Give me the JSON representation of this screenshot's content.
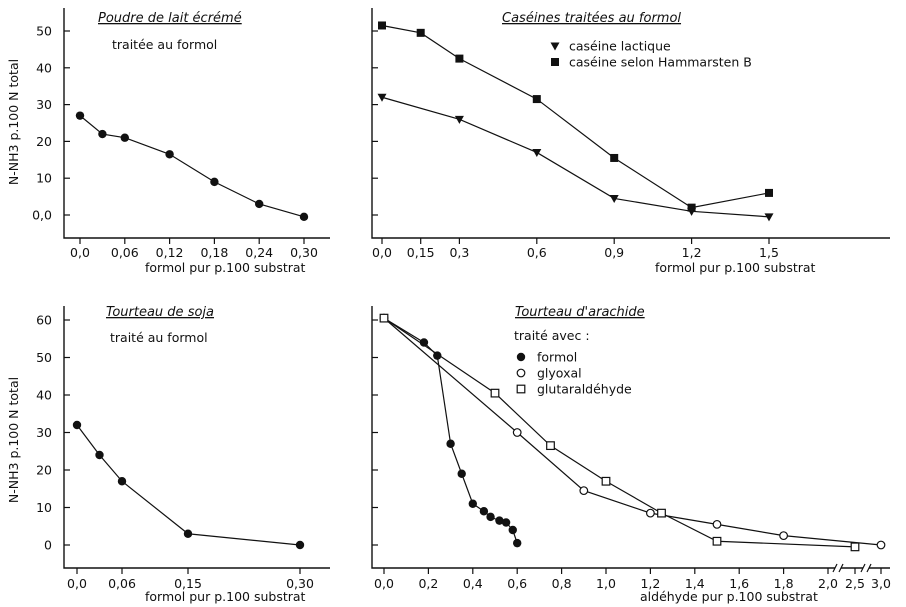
{
  "chart_data": [
    {
      "id": "p1",
      "type": "line",
      "title": "Poudre de lait écrémé",
      "subtitle": "traitée au formol",
      "xlabel": "formol pur p.100 substrat",
      "ylabel": "N-NH3 p.100 N total",
      "x_ticks": [
        "0,0",
        "0,06",
        "0,12",
        "0,18",
        "0,24",
        "0,30"
      ],
      "y_ticks": [
        "0,0",
        "10",
        "20",
        "30",
        "40",
        "50"
      ],
      "ylim": [
        0,
        50
      ],
      "series": [
        {
          "marker": "filled-circle",
          "x": [
            0.0,
            0.03,
            0.06,
            0.12,
            0.18,
            0.24,
            0.3
          ],
          "y": [
            27,
            22,
            21,
            16.5,
            9,
            3,
            -0.5
          ]
        }
      ]
    },
    {
      "id": "p2",
      "type": "line",
      "title": "Caséines traitées au formol",
      "xlabel": "formol pur p.100 substrat",
      "x_ticks": [
        "0,0",
        "0,15",
        "0,3",
        "0,6",
        "0,9",
        "1,2",
        "1,5"
      ],
      "ylim": [
        0,
        50
      ],
      "series": [
        {
          "name": "caséine lactique",
          "marker": "filled-triangle-down",
          "x": [
            0.0,
            0.3,
            0.6,
            0.9,
            1.2,
            1.5
          ],
          "y": [
            32,
            26,
            17,
            4.5,
            1,
            -0.5
          ]
        },
        {
          "name": "caséine selon Hammarsten B",
          "marker": "filled-square",
          "x": [
            0.0,
            0.15,
            0.3,
            0.6,
            0.9,
            1.2,
            1.5
          ],
          "y": [
            51.5,
            49.5,
            42.5,
            31.5,
            15.5,
            2,
            6
          ]
        }
      ]
    },
    {
      "id": "p3",
      "type": "line",
      "title": "Tourteau de soja",
      "subtitle": "traité au formol",
      "xlabel": "formol pur p.100 substrat",
      "ylabel": "N-NH3 p.100 N total",
      "x_ticks": [
        "0,0",
        "0,06",
        "0,15",
        "0,30"
      ],
      "y_ticks": [
        "0",
        "10",
        "20",
        "30",
        "40",
        "50",
        "60"
      ],
      "ylim": [
        0,
        60
      ],
      "series": [
        {
          "marker": "filled-circle",
          "x": [
            0.0,
            0.03,
            0.06,
            0.15,
            0.3
          ],
          "y": [
            32,
            24,
            17,
            3,
            0
          ]
        }
      ]
    },
    {
      "id": "p4",
      "type": "line",
      "title": "Tourteau d'arachide",
      "legend_title": "traité avec :",
      "xlabel": "aldéhyde pur p.100 substrat",
      "x_ticks": [
        "0,0",
        "0,2",
        "0,4",
        "0,6",
        "0,8",
        "1,0",
        "1,2",
        "1,4",
        "1,6",
        "1,8",
        "2,0",
        "2,5",
        "3,0"
      ],
      "ylim": [
        0,
        60
      ],
      "series": [
        {
          "name": "formol",
          "marker": "filled-circle",
          "x": [
            0.0,
            0.18,
            0.24,
            0.3,
            0.35,
            0.4,
            0.45,
            0.48,
            0.52,
            0.55,
            0.58,
            0.6
          ],
          "y": [
            60.5,
            54,
            50.5,
            27,
            19,
            11,
            9,
            7.5,
            6.5,
            6,
            4,
            0.5
          ]
        },
        {
          "name": "glyoxal",
          "marker": "open-circle",
          "x": [
            0.0,
            0.6,
            0.9,
            1.2,
            1.5,
            1.8,
            3.0
          ],
          "y": [
            60.5,
            30,
            14.5,
            8.5,
            5.5,
            2.5,
            0
          ]
        },
        {
          "name": "glutaraldéhyde",
          "marker": "open-square",
          "x": [
            0.0,
            0.5,
            0.75,
            1.0,
            1.25,
            1.5,
            2.5
          ],
          "y": [
            60.5,
            40.5,
            26.5,
            17,
            8.5,
            1,
            -0.5
          ]
        }
      ]
    }
  ]
}
